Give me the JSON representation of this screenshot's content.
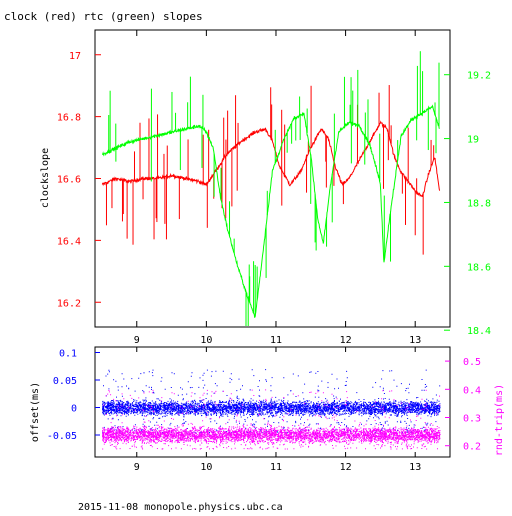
{
  "title": "clock (red) rtc (green) slopes",
  "footer": "2015-11-08 monopole.physics.ubc.ca",
  "colors": {
    "clock": "#ff0000",
    "rtc": "#00ff00",
    "offset": "#0000ff",
    "rnd_trip": "#ff00ff",
    "axes": "#000000"
  },
  "chart_data": [
    {
      "type": "line",
      "title": "clock (red) rtc (green) slopes",
      "xlabel": "",
      "ylabel": "clockslope",
      "y2label": "",
      "xlim": [
        8.4,
        13.5
      ],
      "ylim": [
        16.12,
        17.08
      ],
      "y2lim": [
        18.41,
        19.34
      ],
      "xticks": [
        9,
        10,
        11,
        12,
        13
      ],
      "yticks": [
        16.2,
        16.4,
        16.6,
        16.8,
        17
      ],
      "y2ticks": [
        18.4,
        18.6,
        18.8,
        19,
        19.2
      ],
      "grid": false,
      "series": [
        {
          "name": "clock",
          "axis": "left",
          "color": "#ff0000",
          "x": [
            8.5,
            8.7,
            8.9,
            9.1,
            9.3,
            9.5,
            9.7,
            9.9,
            10.0,
            10.15,
            10.3,
            10.5,
            10.7,
            10.85,
            10.95,
            11.05,
            11.2,
            11.35,
            11.5,
            11.65,
            11.75,
            11.85,
            11.95,
            12.05,
            12.2,
            12.35,
            12.5,
            12.6,
            12.7,
            12.8,
            12.9,
            13.0,
            13.1,
            13.2,
            13.28,
            13.35
          ],
          "y": [
            16.58,
            16.6,
            16.59,
            16.6,
            16.6,
            16.61,
            16.6,
            16.59,
            16.58,
            16.63,
            16.68,
            16.72,
            16.75,
            16.76,
            16.72,
            16.64,
            16.58,
            16.62,
            16.7,
            16.76,
            16.73,
            16.64,
            16.58,
            16.6,
            16.66,
            16.72,
            16.78,
            16.76,
            16.67,
            16.62,
            16.59,
            16.56,
            16.54,
            16.62,
            16.67,
            16.56
          ]
        },
        {
          "name": "rtc",
          "axis": "right",
          "color": "#00ff00",
          "x": [
            8.5,
            8.7,
            8.9,
            9.1,
            9.3,
            9.5,
            9.7,
            9.9,
            10.0,
            10.1,
            10.2,
            10.3,
            10.45,
            10.6,
            10.7,
            10.8,
            10.95,
            11.1,
            11.25,
            11.4,
            11.5,
            11.6,
            11.68,
            11.78,
            11.9,
            12.05,
            12.2,
            12.35,
            12.5,
            12.55,
            12.65,
            12.8,
            12.95,
            13.1,
            13.25,
            13.35
          ],
          "y": [
            18.95,
            18.97,
            18.99,
            19.0,
            19.01,
            19.02,
            19.03,
            19.04,
            19.02,
            18.97,
            18.82,
            18.72,
            18.6,
            18.5,
            18.44,
            18.62,
            18.9,
            18.99,
            19.06,
            19.08,
            18.95,
            18.75,
            18.67,
            18.85,
            19.02,
            19.05,
            19.04,
            18.98,
            18.86,
            18.61,
            18.78,
            19.01,
            19.06,
            19.08,
            19.1,
            19.03
          ]
        }
      ]
    },
    {
      "type": "scatter",
      "xlabel": "",
      "ylabel": "offset(ms)",
      "y2label": "rnd-trip(ms)",
      "xlim": [
        8.4,
        13.5
      ],
      "ylim": [
        -0.09,
        0.11
      ],
      "y2lim": [
        0.16,
        0.55
      ],
      "xticks": [
        9,
        10,
        11,
        12,
        13
      ],
      "yticks": [
        -0.05,
        0,
        0.05,
        0.1
      ],
      "y2ticks": [
        0.2,
        0.3,
        0.4,
        0.5
      ],
      "grid": false,
      "series": [
        {
          "name": "offset",
          "axis": "left",
          "color": "#0000ff",
          "x_range": [
            8.5,
            13.35
          ],
          "center": 0.0,
          "core_spread": 0.012,
          "outer_range": [
            -0.045,
            0.07
          ]
        },
        {
          "name": "rnd-trip",
          "axis": "right",
          "color": "#ff00ff",
          "x_range": [
            8.5,
            13.35
          ],
          "center": 0.24,
          "core_spread": 0.025,
          "outer_range": [
            0.19,
            0.4
          ]
        }
      ]
    }
  ]
}
